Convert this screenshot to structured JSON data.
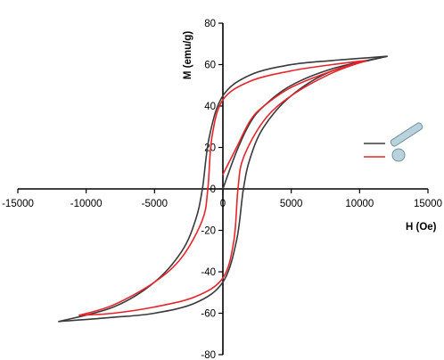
{
  "chart_data": {
    "type": "line",
    "xlabel": "H (Oe)",
    "ylabel": "M (emu/g)",
    "xlim": [
      -15000,
      15000
    ],
    "ylim": [
      -80,
      80
    ],
    "xticks": [
      -15000,
      -10000,
      -5000,
      0,
      5000,
      10000,
      15000
    ],
    "yticks": [
      -80,
      -60,
      -40,
      -20,
      0,
      20,
      40,
      60,
      80
    ],
    "grid": false,
    "legend_placement": "right",
    "series": [
      {
        "legend_icon": "rod-icon",
        "color": "#3a3a3a",
        "initial_curve": {
          "x": [
            0,
            1000,
            2000,
            3000,
            5000,
            8000,
            12000
          ],
          "y": [
            0,
            18,
            32,
            40,
            50,
            58,
            64
          ]
        },
        "upper_branch": {
          "x": [
            12000,
            8000,
            5000,
            2000,
            0,
            -1000,
            -1500,
            -2000,
            -3000,
            -5000,
            -8000,
            -12000
          ],
          "y": [
            64,
            62,
            60,
            55,
            45,
            25,
            0,
            -15,
            -30,
            -45,
            -57,
            -64
          ]
        },
        "lower_branch": {
          "x": [
            -12000,
            -8000,
            -5000,
            -2000,
            0,
            1000,
            1500,
            2000,
            3000,
            5000,
            8000,
            12000
          ],
          "y": [
            -64,
            -62,
            -60,
            -55,
            -45,
            -25,
            0,
            15,
            30,
            45,
            57,
            64
          ]
        }
      },
      {
        "legend_icon": "sphere-icon",
        "color": "#e8242b",
        "initial_curve": {
          "x": [
            0,
            1000,
            2000,
            3000,
            5000,
            8000,
            10500
          ],
          "y": [
            7,
            20,
            33,
            40,
            49,
            57,
            62
          ]
        },
        "upper_branch": {
          "x": [
            10500,
            8000,
            5000,
            2000,
            0,
            -800,
            -1100,
            -1500,
            -3000,
            -5000,
            -8000,
            -10500
          ],
          "y": [
            62,
            60,
            57,
            52,
            43,
            25,
            0,
            -15,
            -33,
            -45,
            -56,
            -61
          ]
        },
        "lower_branch": {
          "x": [
            -10500,
            -8000,
            -5000,
            -2000,
            0,
            800,
            1100,
            1500,
            3000,
            5000,
            8000,
            10500
          ],
          "y": [
            -61,
            -60,
            -57,
            -52,
            -43,
            -25,
            0,
            15,
            33,
            45,
            56,
            62
          ]
        }
      }
    ]
  }
}
